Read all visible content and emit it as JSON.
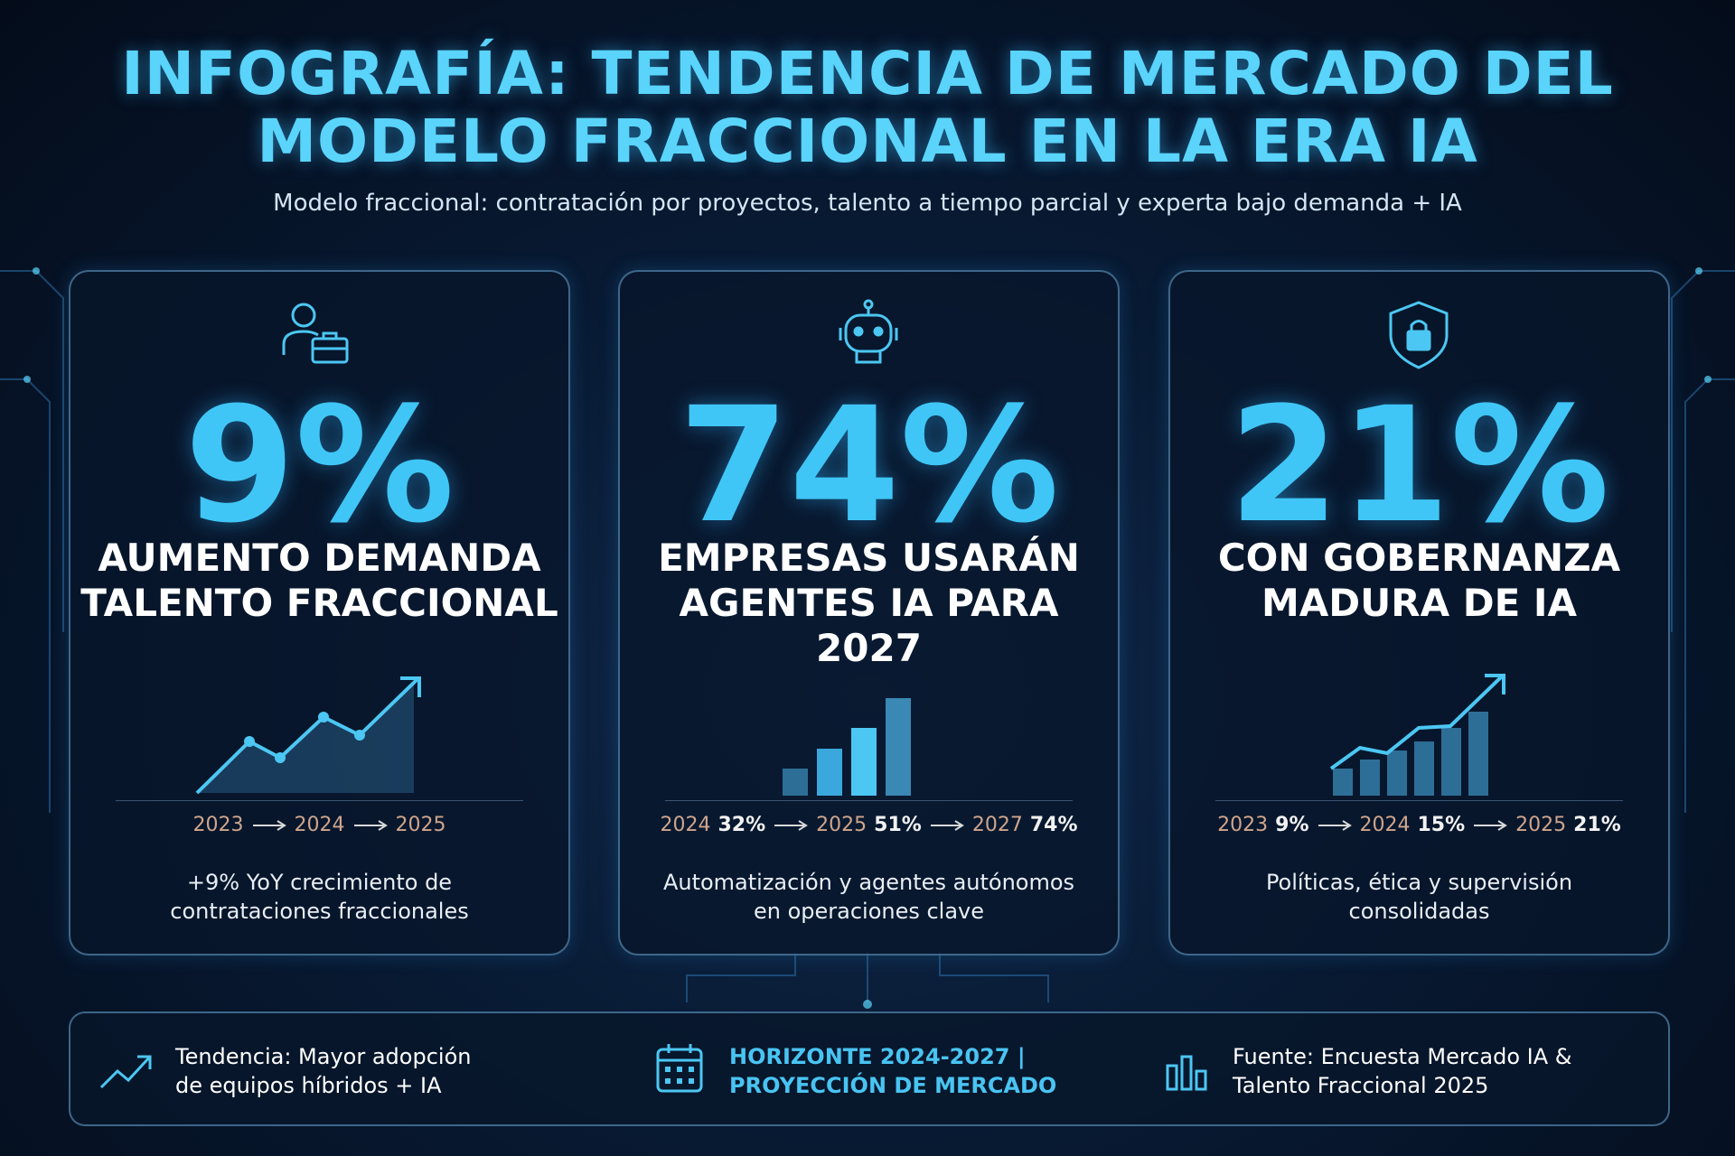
{
  "header": {
    "title_lines": [
      "INFOGRAFÍA: TENDENCIA DE MERCADO DEL",
      "MODELO FRACCIONAL EN LA ERA IA"
    ],
    "subtitle": "Modelo fraccional: contratación por proyectos, talento a tiempo parcial y experta bajo demanda + IA"
  },
  "cards": [
    {
      "value": "9%",
      "label_lines": [
        "AUMENTO DEMANDA",
        "TALENTO FRACCIONAL"
      ],
      "timeline": [
        {
          "year": "2023"
        },
        {
          "year": "2024"
        },
        {
          "year": "2025"
        }
      ],
      "description_lines": [
        "+9% YoY crecimiento de",
        "contrataciones fraccionales"
      ]
    },
    {
      "value": "74%",
      "label_lines": [
        "EMPRESAS USARÁN",
        "AGENTES IA PARA",
        "2027"
      ],
      "timeline": [
        {
          "year": "2024",
          "value": "32%"
        },
        {
          "year": "2025",
          "value": "51%"
        },
        {
          "year": "2027",
          "value": "74%"
        }
      ],
      "description_lines": [
        "Automatización y agentes autónomos",
        "en operaciones clave"
      ]
    },
    {
      "value": "21%",
      "label_lines": [
        "CON GOBERNANZA",
        "MADURA DE IA"
      ],
      "timeline": [
        {
          "year": "2023",
          "value": "9%"
        },
        {
          "year": "2024",
          "value": "15%"
        },
        {
          "year": "2025",
          "value": "21%"
        }
      ],
      "description_lines": [
        "Políticas, ética y supervisión",
        "consolidadas"
      ]
    }
  ],
  "footer": [
    {
      "lines": [
        "Tendencia: Mayor adopción",
        "de equipos híbridos + IA"
      ]
    },
    {
      "lines": [
        "HORIZONTE 2024-2027 |",
        "PROYECCIÓN DE MERCADO"
      ]
    },
    {
      "lines": [
        "Fuente: Encuesta Mercado IA &",
        "Talento Fraccional 2025"
      ]
    }
  ]
}
